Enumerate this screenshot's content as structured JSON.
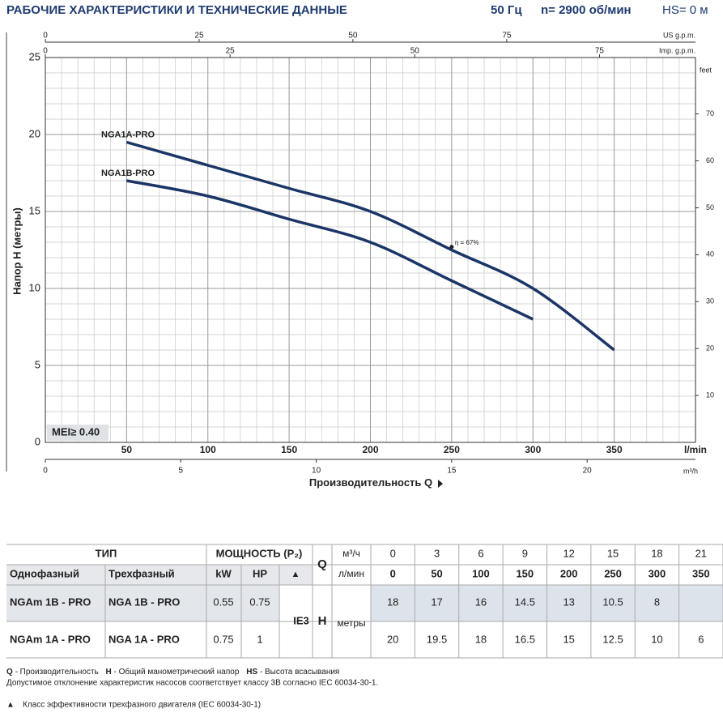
{
  "header": {
    "title": "РАБОЧИЕ ХАРАКТЕРИСТИКИ И ТЕХНИЧЕСКИЕ ДАННЫЕ",
    "frequency": "50 Гц",
    "speed": "n= 2900 об/мин",
    "suction": "HS= 0 м"
  },
  "chart_data": {
    "type": "line",
    "y_label": "Напор H (метры)",
    "x_label": "Производительность Q",
    "x_unit": "l/min",
    "x": [
      50,
      100,
      150,
      200,
      250,
      300,
      350
    ],
    "series": [
      {
        "name": "NGA1A-PRO",
        "color": "#1b3566",
        "values": [
          19.5,
          18,
          16.5,
          15,
          12.5,
          10,
          6
        ]
      },
      {
        "name": "NGA1B-PRO",
        "color": "#1b3566",
        "values": [
          17,
          16,
          14.5,
          13,
          10.5,
          8,
          null
        ]
      }
    ],
    "xlim": [
      0,
      400
    ],
    "xticks": [
      50,
      100,
      150,
      200,
      250,
      300,
      350
    ],
    "ylim": [
      0,
      25
    ],
    "yticks": [
      0,
      5,
      10,
      15,
      20,
      25
    ],
    "grid": true,
    "annotations": [
      {
        "text": "η = 67%",
        "x": 250,
        "y": 12.7
      }
    ],
    "mei_label": "MEI≥ 0.40",
    "top_axes": [
      {
        "unit": "US g.p.m.",
        "lim": [
          0,
          105.68
        ],
        "ticks": [
          0,
          25,
          50,
          75
        ]
      },
      {
        "unit": "Imp. g.p.m.",
        "lim": [
          0,
          87.99
        ],
        "ticks": [
          0,
          25,
          50,
          75
        ]
      }
    ],
    "bottom_axis": {
      "unit": "m³/h",
      "lim": [
        0,
        24
      ],
      "ticks": [
        0,
        5,
        10,
        15,
        20
      ]
    },
    "right_axis": {
      "unit": "feet",
      "lim": [
        0,
        82.02
      ],
      "ticks": [
        10,
        20,
        30,
        40,
        50,
        60,
        70
      ]
    }
  },
  "table": {
    "group_headers": [
      "ТИП",
      "МОЩНОСТЬ (P₂)"
    ],
    "col_headers": [
      "Однофазный",
      "Трехфазный",
      "kW",
      "HP",
      "▲"
    ],
    "efficiency_class": "IE3",
    "q_symbol": "Q",
    "q_units": [
      "м³/ч",
      "л/мин"
    ],
    "flow_m3h": [
      0,
      3,
      6,
      9,
      12,
      15,
      18,
      21
    ],
    "flow_lmin": [
      0,
      50,
      100,
      150,
      200,
      250,
      300,
      350
    ],
    "h_symbol": "H",
    "h_unit": "метры",
    "rows": [
      {
        "single_phase": "NGAm 1B - PRO",
        "three_phase": "NGA 1B - PRO",
        "kw": 0.55,
        "hp": 0.75,
        "head": [
          18,
          17,
          16,
          14.5,
          13,
          10.5,
          8,
          null
        ]
      },
      {
        "single_phase": "NGAm 1A - PRO",
        "three_phase": "NGA 1A - PRO",
        "kw": 0.75,
        "hp": 1,
        "head": [
          20,
          19.5,
          18,
          16.5,
          15,
          12.5,
          10,
          6
        ]
      }
    ]
  },
  "footnotes": {
    "legend": [
      {
        "symbol": "Q",
        "text": "- Производительность"
      },
      {
        "symbol": "H",
        "text": "- Общий манометрический напор"
      },
      {
        "symbol": "HS",
        "text": "- Высота всасывания"
      }
    ],
    "tolerance": "Допустимое отклонение характеристик насосов соответствует классу 3B согласно IEC 60034-30-1.",
    "motor_class": {
      "symbol": "▲",
      "text": "Класс эффективности трехфазного двигателя (IEC 60034-30-1)"
    }
  }
}
